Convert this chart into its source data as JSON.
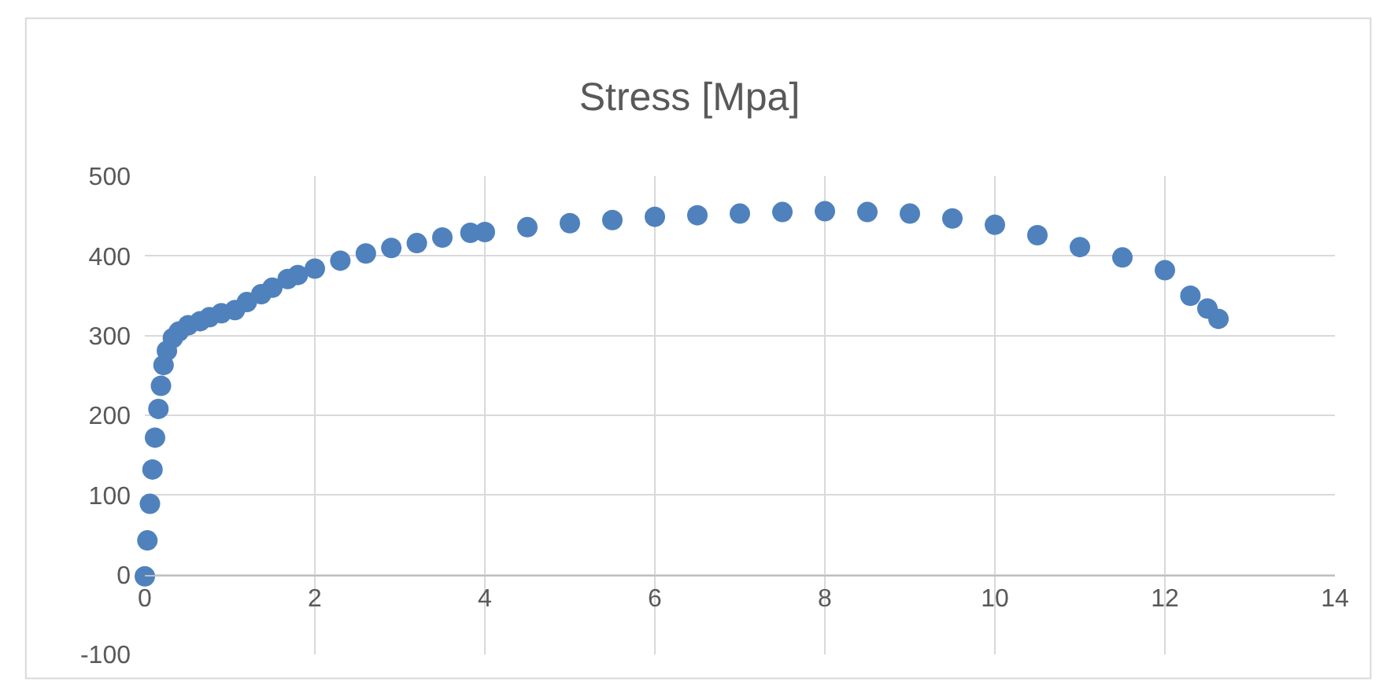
{
  "chart_data": {
    "type": "scatter",
    "title": "Stress [Mpa]",
    "x": [
      0,
      0.03,
      0.06,
      0.09,
      0.12,
      0.16,
      0.19,
      0.22,
      0.26,
      0.33,
      0.4,
      0.51,
      0.65,
      0.76,
      0.9,
      1.06,
      1.2,
      1.37,
      1.5,
      1.68,
      1.8,
      2,
      2.3,
      2.6,
      2.9,
      3.2,
      3.5,
      3.83,
      4,
      4.5,
      5,
      5.5,
      6,
      6.5,
      7,
      7.5,
      8,
      8.5,
      9,
      9.5,
      10,
      10.5,
      11,
      11.5,
      12,
      12.3,
      12.5,
      12.63
    ],
    "values": [
      -2,
      43,
      89,
      132,
      172,
      208,
      237,
      263,
      281,
      297,
      305,
      313,
      318,
      323,
      328,
      332,
      342,
      352,
      360,
      371,
      376,
      384,
      394,
      403,
      410,
      416,
      423,
      429,
      430,
      436,
      441,
      445,
      449,
      451,
      453,
      455,
      456,
      455,
      453,
      447,
      439,
      426,
      411,
      398,
      382,
      350,
      334,
      321
    ],
    "color": "#4f81bd",
    "marker": "circle",
    "xlim": [
      0,
      14
    ],
    "xticks": [
      0,
      2,
      4,
      6,
      8,
      10,
      12,
      14
    ],
    "ylim": [
      -100,
      500
    ],
    "yticks": [
      -100,
      0,
      100,
      200,
      300,
      400,
      500
    ],
    "grid": true
  }
}
